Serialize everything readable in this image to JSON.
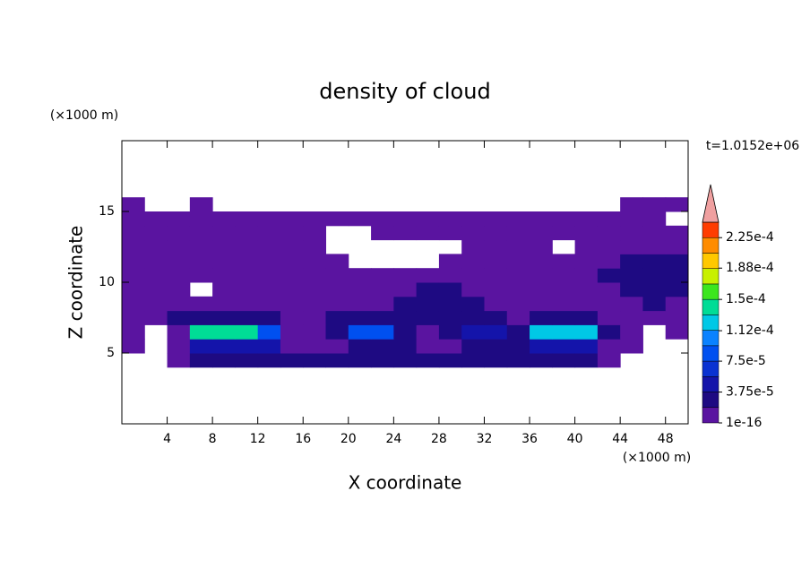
{
  "chart_data": {
    "type": "contour",
    "title": "density of cloud",
    "x_label": "X coordinate",
    "y_label": "Z coordinate",
    "x_unit": "(×1000 m)",
    "y_unit": "(×1000 m)",
    "time_label": "t=1.0152e+06",
    "xlim": [
      0,
      50
    ],
    "xticks": [
      4,
      8,
      12,
      16,
      20,
      24,
      28,
      32,
      36,
      40,
      44,
      48
    ],
    "ylim": [
      0,
      20
    ],
    "yticks": [
      5,
      10,
      15
    ],
    "x": [
      1,
      3,
      5,
      7,
      9,
      11,
      13,
      15,
      17,
      19,
      21,
      23,
      25,
      27,
      29,
      31,
      33,
      35,
      37,
      39,
      41,
      43,
      45,
      47,
      49
    ],
    "z": [
      4.5,
      5.5,
      6.5,
      7.5,
      8.5,
      9.5,
      10.5,
      11.5,
      12.5,
      13.5,
      14.5,
      15.5
    ],
    "values": [
      [
        null,
        null,
        1e-05,
        3e-05,
        3e-05,
        3e-05,
        3e-05,
        3e-05,
        3e-05,
        3e-05,
        3e-05,
        3e-05,
        3e-05,
        3e-05,
        3e-05,
        3e-05,
        3e-05,
        3e-05,
        3e-05,
        3e-05,
        3e-05,
        1e-05,
        null,
        null,
        null
      ],
      [
        1e-05,
        null,
        1e-05,
        5e-05,
        5e-05,
        5e-05,
        5e-05,
        1e-05,
        1e-05,
        1e-05,
        3e-05,
        3e-05,
        3e-05,
        1e-05,
        1e-05,
        3e-05,
        3e-05,
        3e-05,
        5e-05,
        5e-05,
        5e-05,
        1e-05,
        1e-05,
        null,
        null
      ],
      [
        1e-05,
        null,
        1e-05,
        0.00015,
        0.00015,
        0.00015,
        8e-05,
        1e-05,
        1e-05,
        3e-05,
        8e-05,
        8e-05,
        3e-05,
        1e-05,
        3e-05,
        5e-05,
        5e-05,
        3e-05,
        0.00012,
        0.00012,
        0.00012,
        3e-05,
        1e-05,
        null,
        1e-05
      ],
      [
        1e-05,
        1e-05,
        3e-05,
        3e-05,
        3e-05,
        3e-05,
        3e-05,
        1e-05,
        1e-05,
        3e-05,
        3e-05,
        3e-05,
        3e-05,
        3e-05,
        3e-05,
        3e-05,
        3e-05,
        1e-05,
        3e-05,
        3e-05,
        3e-05,
        1e-05,
        1e-05,
        1e-05,
        1e-05
      ],
      [
        1e-05,
        1e-05,
        1e-05,
        1e-05,
        1e-05,
        1e-05,
        1e-05,
        1e-05,
        1e-05,
        1e-05,
        1e-05,
        1e-05,
        3e-05,
        3e-05,
        3e-05,
        3e-05,
        1e-05,
        1e-05,
        1e-05,
        1e-05,
        1e-05,
        1e-05,
        1e-05,
        3e-05,
        1e-05
      ],
      [
        1e-05,
        1e-05,
        1e-05,
        null,
        1e-05,
        1e-05,
        1e-05,
        1e-05,
        1e-05,
        1e-05,
        1e-05,
        1e-05,
        1e-05,
        3e-05,
        3e-05,
        1e-05,
        1e-05,
        1e-05,
        1e-05,
        1e-05,
        1e-05,
        1e-05,
        3e-05,
        3e-05,
        3e-05
      ],
      [
        1e-05,
        1e-05,
        1e-05,
        1e-05,
        1e-05,
        1e-05,
        1e-05,
        1e-05,
        1e-05,
        1e-05,
        1e-05,
        1e-05,
        1e-05,
        1e-05,
        1e-05,
        1e-05,
        1e-05,
        1e-05,
        1e-05,
        1e-05,
        1e-05,
        3e-05,
        3e-05,
        3e-05,
        3e-05
      ],
      [
        1e-05,
        1e-05,
        1e-05,
        1e-05,
        1e-05,
        1e-05,
        1e-05,
        1e-05,
        1e-05,
        1e-05,
        null,
        null,
        null,
        null,
        1e-05,
        1e-05,
        1e-05,
        1e-05,
        1e-05,
        1e-05,
        1e-05,
        1e-05,
        3e-05,
        3e-05,
        3e-05
      ],
      [
        1e-05,
        1e-05,
        1e-05,
        1e-05,
        1e-05,
        1e-05,
        1e-05,
        1e-05,
        1e-05,
        null,
        null,
        null,
        null,
        null,
        null,
        1e-05,
        1e-05,
        1e-05,
        1e-05,
        null,
        1e-05,
        1e-05,
        1e-05,
        1e-05,
        1e-05
      ],
      [
        1e-05,
        1e-05,
        1e-05,
        1e-05,
        1e-05,
        1e-05,
        1e-05,
        1e-05,
        1e-05,
        null,
        null,
        1e-05,
        1e-05,
        1e-05,
        1e-05,
        1e-05,
        1e-05,
        1e-05,
        1e-05,
        1e-05,
        1e-05,
        1e-05,
        1e-05,
        1e-05,
        1e-05
      ],
      [
        1e-05,
        1e-05,
        1e-05,
        1e-05,
        1e-05,
        1e-05,
        1e-05,
        1e-05,
        1e-05,
        1e-05,
        1e-05,
        1e-05,
        1e-05,
        1e-05,
        1e-05,
        1e-05,
        1e-05,
        1e-05,
        1e-05,
        1e-05,
        1e-05,
        1e-05,
        1e-05,
        1e-05,
        null
      ],
      [
        1e-05,
        null,
        null,
        1e-05,
        null,
        null,
        null,
        null,
        null,
        null,
        null,
        null,
        null,
        null,
        null,
        null,
        null,
        null,
        null,
        null,
        null,
        null,
        1e-05,
        1e-05,
        1e-05
      ]
    ],
    "clim": [
      1e-16,
      0.00024375
    ],
    "colors": [
      "#5a14a0",
      "#1e0a82",
      "#1414aa",
      "#0a32d2",
      "#0050f0",
      "#0a82ff",
      "#00c8e6",
      "#00dc96",
      "#3ce61e",
      "#c8f000",
      "#ffc800",
      "#ff8c00",
      "#ff3c00"
    ],
    "extend_max_color": "#f0a0a0",
    "cticks": [
      1e-16,
      {
        "value": 3.75e-05,
        "label": "3.75e-5"
      },
      {
        "value": 7.5e-05,
        "label": "7.5e-5"
      },
      {
        "value": 0.000112,
        "label": "1.12e-4"
      },
      {
        "value": 0.00015,
        "label": "1.5e-4"
      },
      {
        "value": 0.000188,
        "label": "1.88e-4"
      },
      {
        "value": 0.000225,
        "label": "2.25e-4"
      }
    ]
  }
}
